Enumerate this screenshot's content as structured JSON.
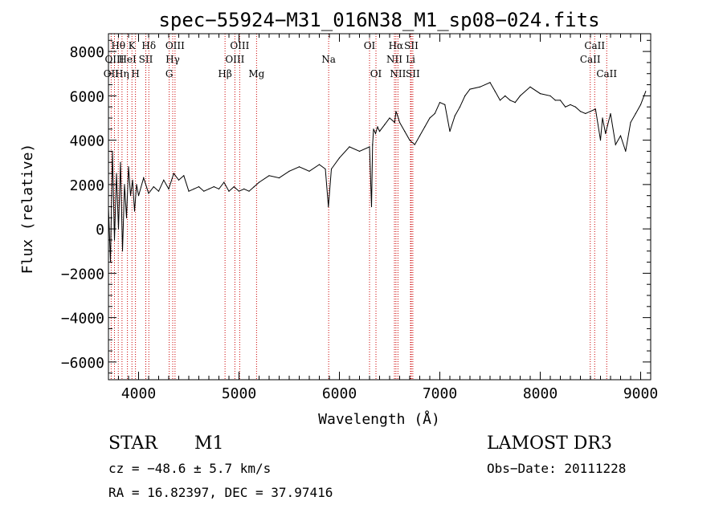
{
  "chart_data": {
    "type": "line",
    "title": "spec−55924−M31_016N38_M1_sp08−024.fits",
    "xlabel": "Wavelength (Å)",
    "ylabel": "Flux (relative)",
    "xlim": [
      3700,
      9100
    ],
    "ylim": [
      -6800,
      8800
    ],
    "xticks": [
      4000,
      5000,
      6000,
      7000,
      8000,
      9000
    ],
    "xtick_labels": [
      "4000",
      "5000",
      "6000",
      "7000",
      "8000",
      "9000"
    ],
    "yticks": [
      -6000,
      -4000,
      -2000,
      0,
      2000,
      4000,
      6000,
      8000
    ],
    "ytick_labels": [
      "−6000",
      "−4000",
      "−2000",
      "0",
      "2000",
      "4000",
      "6000",
      "8000"
    ],
    "series": [
      {
        "name": "flux",
        "x": [
          3700,
          3720,
          3740,
          3760,
          3780,
          3800,
          3820,
          3840,
          3860,
          3880,
          3900,
          3920,
          3940,
          3960,
          3980,
          4000,
          4050,
          4100,
          4150,
          4200,
          4250,
          4300,
          4350,
          4400,
          4450,
          4500,
          4550,
          4600,
          4650,
          4700,
          4750,
          4800,
          4850,
          4900,
          4950,
          5000,
          5050,
          5100,
          5150,
          5200,
          5300,
          5400,
          5500,
          5600,
          5700,
          5800,
          5860,
          5890,
          5920,
          6000,
          6100,
          6200,
          6300,
          6320,
          6330,
          6340,
          6360,
          6380,
          6400,
          6450,
          6500,
          6550,
          6563,
          6580,
          6600,
          6650,
          6700,
          6750,
          6800,
          6850,
          6900,
          6950,
          7000,
          7050,
          7100,
          7150,
          7200,
          7250,
          7300,
          7400,
          7500,
          7550,
          7600,
          7650,
          7700,
          7750,
          7800,
          7900,
          8000,
          8100,
          8150,
          8200,
          8250,
          8300,
          8350,
          8400,
          8450,
          8500,
          8550,
          8600,
          8620,
          8650,
          8700,
          8750,
          8800,
          8850,
          8900,
          8950,
          9000,
          9050
        ],
        "values": [
          1000,
          -1500,
          3500,
          -500,
          2500,
          0,
          3000,
          -1000,
          2000,
          500,
          2800,
          1500,
          2200,
          800,
          2000,
          1500,
          2300,
          1600,
          1900,
          1700,
          2200,
          1800,
          2500,
          2200,
          2400,
          1700,
          1800,
          1900,
          1700,
          1800,
          1900,
          1800,
          2100,
          1700,
          1900,
          1700,
          1800,
          1700,
          1900,
          2100,
          2400,
          2300,
          2600,
          2800,
          2600,
          2900,
          2700,
          1000,
          2700,
          3200,
          3700,
          3500,
          3700,
          1000,
          3800,
          4500,
          4300,
          4600,
          4400,
          4700,
          5000,
          4800,
          5300,
          5100,
          4800,
          4400,
          4000,
          3800,
          4200,
          4600,
          5000,
          5200,
          5700,
          5600,
          4400,
          5100,
          5500,
          6000,
          6300,
          6400,
          6600,
          6200,
          5800,
          6000,
          5800,
          5700,
          6000,
          6400,
          6100,
          6000,
          5800,
          5800,
          5500,
          5600,
          5500,
          5300,
          5200,
          5300,
          5400,
          4000,
          5000,
          4300,
          5200,
          3800,
          4200,
          3500,
          4800,
          5200,
          5600,
          6200
        ]
      }
    ],
    "lines": [
      {
        "name": "OII",
        "wl": 3727,
        "row": 3
      },
      {
        "name": "Hθ",
        "wl": 3798,
        "row": 1
      },
      {
        "name": "OIII",
        "wl": 3760,
        "row": 2
      },
      {
        "name": "Hη",
        "wl": 3835,
        "row": 3
      },
      {
        "name": "K",
        "wl": 3934,
        "row": 1
      },
      {
        "name": "HeI",
        "wl": 3889,
        "row": 2
      },
      {
        "name": "H",
        "wl": 3969,
        "row": 3
      },
      {
        "name": "SII",
        "wl": 4072,
        "row": 2
      },
      {
        "name": "Hδ",
        "wl": 4102,
        "row": 1
      },
      {
        "name": "OIII",
        "wl": 4363,
        "row": 1
      },
      {
        "name": "Hγ",
        "wl": 4340,
        "row": 2
      },
      {
        "name": "G",
        "wl": 4305,
        "row": 3
      },
      {
        "name": "OIII",
        "wl": 5007,
        "row": 1
      },
      {
        "name": "OIII",
        "wl": 4959,
        "row": 2
      },
      {
        "name": "Hβ",
        "wl": 4861,
        "row": 3
      },
      {
        "name": "Mg",
        "wl": 5175,
        "row": 3
      },
      {
        "name": "Na",
        "wl": 5893,
        "row": 2
      },
      {
        "name": "OI",
        "wl": 6300,
        "row": 1
      },
      {
        "name": "OI",
        "wl": 6364,
        "row": 3
      },
      {
        "name": "Hα",
        "wl": 6563,
        "row": 1
      },
      {
        "name": "SII",
        "wl": 6716,
        "row": 1
      },
      {
        "name": "NII",
        "wl": 6548,
        "row": 2
      },
      {
        "name": "Li",
        "wl": 6708,
        "row": 2
      },
      {
        "name": "NII",
        "wl": 6583,
        "row": 3
      },
      {
        "name": "SII",
        "wl": 6731,
        "row": 3
      },
      {
        "name": "CaII",
        "wl": 8542,
        "row": 1
      },
      {
        "name": "CaII",
        "wl": 8498,
        "row": 2
      },
      {
        "name": "CaII",
        "wl": 8662,
        "row": 3
      }
    ]
  },
  "info": {
    "class": "STAR",
    "subclass": "M1",
    "survey": "LAMOST DR3",
    "cz": "cz = −48.6 ± 5.7 km/s",
    "obs_date": "Obs−Date: 20111228",
    "coords": "RA =  16.82397, DEC =  37.97416"
  }
}
